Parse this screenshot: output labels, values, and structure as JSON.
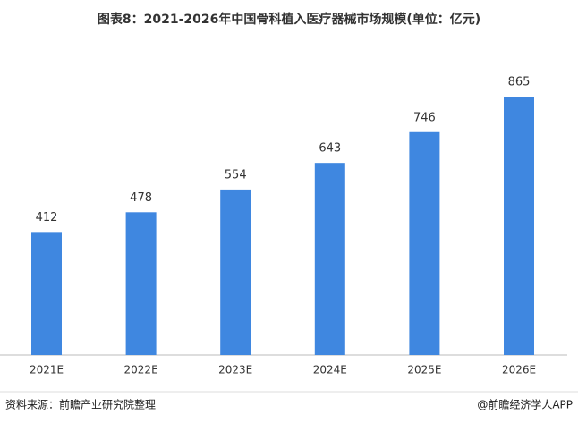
{
  "chart_data": {
    "type": "bar",
    "title": "图表8：2021-2026年中国骨科植入医疗器械市场规模(单位：亿元)",
    "categories": [
      "2021E",
      "2022E",
      "2023E",
      "2024E",
      "2025E",
      "2026E"
    ],
    "values": [
      412,
      478,
      554,
      643,
      746,
      865
    ],
    "color": "#3f87e0"
  },
  "footer": {
    "source": "资料来源：前瞻产业研究院整理",
    "brand": "@前瞻经济学人APP"
  }
}
